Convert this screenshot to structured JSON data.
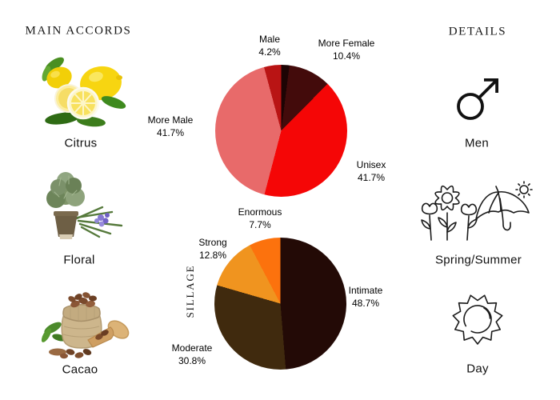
{
  "accords": {
    "title": "MAIN ACCORDS",
    "items": [
      {
        "label": "Citrus",
        "icon": "citrus-lemons-photo"
      },
      {
        "label": "Floral",
        "icon": "potted-rosemary-flowers-photo"
      },
      {
        "label": "Cacao",
        "icon": "cacao-beans-sack-photo"
      }
    ]
  },
  "details": {
    "title": "DETAILS",
    "items": [
      {
        "label": "Men",
        "icon": "male-symbol-icon"
      },
      {
        "label": "Spring/Summer",
        "icon": "flowers-and-beach-umbrella-icon"
      },
      {
        "label": "Day",
        "icon": "sun-icon"
      }
    ]
  },
  "chart_data": [
    {
      "type": "pie",
      "name": "gender-audience",
      "title": "",
      "direction": "clockwise",
      "start_angle": "12-oclock",
      "labels": "outside, name + percent",
      "slices": [
        {
          "label": "",
          "percent_text": "",
          "value": 2.0,
          "color": "#1d0404"
        },
        {
          "label": "More Female",
          "percent_text": "10.4%",
          "value": 10.4,
          "color": "#430b0b"
        },
        {
          "label": "Unisex",
          "percent_text": "41.7%",
          "value": 41.7,
          "color": "#f50606"
        },
        {
          "label": "More Male",
          "percent_text": "41.7%",
          "value": 41.7,
          "color": "#e86a6a"
        },
        {
          "label": "Male",
          "percent_text": "4.2%",
          "value": 4.2,
          "color": "#b91414"
        }
      ]
    },
    {
      "type": "pie",
      "name": "sillage",
      "ylabel": "SILLAGE",
      "direction": "clockwise",
      "start_angle": "12-oclock",
      "labels": "outside, name + percent",
      "slices": [
        {
          "label": "Intimate",
          "percent_text": "48.7%",
          "value": 48.7,
          "color": "#230a06"
        },
        {
          "label": "Moderate",
          "percent_text": "30.8%",
          "value": 30.8,
          "color": "#402a0e"
        },
        {
          "label": "Strong",
          "percent_text": "12.8%",
          "value": 12.8,
          "color": "#f0941f"
        },
        {
          "label": "Enormous",
          "percent_text": "7.7%",
          "value": 7.7,
          "color": "#fc720d"
        }
      ]
    }
  ]
}
